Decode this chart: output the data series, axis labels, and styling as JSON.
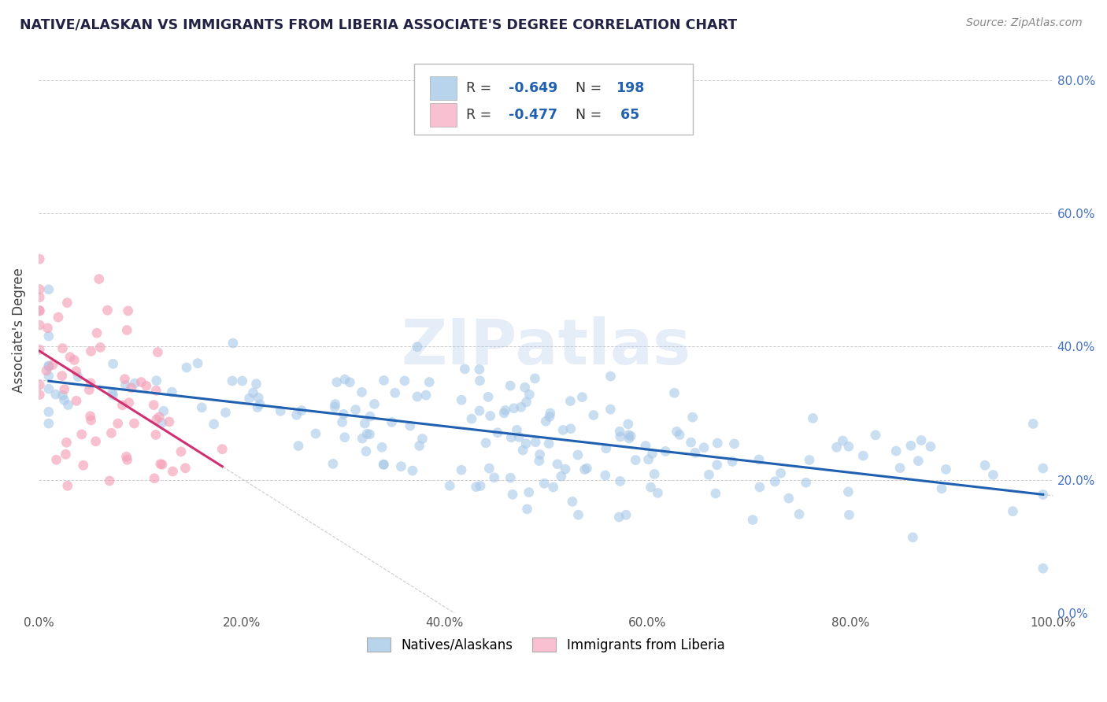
{
  "title": "NATIVE/ALASKAN VS IMMIGRANTS FROM LIBERIA ASSOCIATE'S DEGREE CORRELATION CHART",
  "source": "Source: ZipAtlas.com",
  "ylabel": "Associate's Degree",
  "watermark": "ZIPatlas",
  "blue_color": "#a8c8e8",
  "pink_color": "#f4a0b8",
  "blue_line_color": "#2060b0",
  "pink_line_color": "#d03070",
  "blue_legend_color": "#b8d4ec",
  "pink_legend_color": "#f8c0d0",
  "title_color": "#222244",
  "stats_blue": "#2060b0",
  "stats_pink": "#2060b0",
  "neg_blue": "#d03070",
  "grid_color": "#cccccc",
  "background_color": "#ffffff",
  "xlim": [
    0.0,
    1.0
  ],
  "ylim": [
    0.0,
    0.85
  ],
  "native_N": 198,
  "liberia_N": 65,
  "native_R": -0.649,
  "liberia_R": -0.477,
  "right_ytick_color": "#4472c4",
  "source_color": "#888888"
}
